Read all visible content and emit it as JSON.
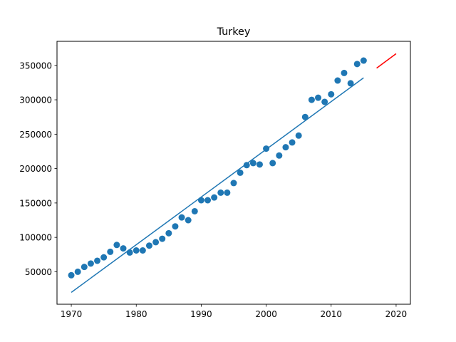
{
  "chart_data": {
    "type": "scatter",
    "title": "Turkey",
    "xlabel": "",
    "ylabel": "",
    "xlim": [
      1967.8,
      2022.2
    ],
    "ylim": [
      2800,
      385000
    ],
    "xticks": [
      1970,
      1980,
      1990,
      2000,
      2010,
      2020
    ],
    "yticks": [
      50000,
      100000,
      150000,
      200000,
      250000,
      300000,
      350000
    ],
    "grid": false,
    "colors": {
      "points": "#1f77b4",
      "fit": "#1f77b4",
      "forecast": "#ff0000",
      "axes": "#000000"
    },
    "series": [
      {
        "kind": "points",
        "x": [
          1970,
          1971,
          1972,
          1973,
          1974,
          1975,
          1976,
          1977,
          1978,
          1979,
          1980,
          1981,
          1982,
          1983,
          1984,
          1985,
          1986,
          1987,
          1988,
          1989,
          1990,
          1991,
          1992,
          1993,
          1994,
          1995,
          1996,
          1997,
          1998,
          1999,
          2000,
          2001,
          2002,
          2003,
          2004,
          2005,
          2006,
          2007,
          2008,
          2009,
          2010,
          2011,
          2012,
          2013,
          2014,
          2015
        ],
        "y": [
          45000,
          50000,
          57000,
          62000,
          66000,
          71000,
          79000,
          89000,
          84000,
          78000,
          81000,
          81000,
          88000,
          93000,
          98000,
          106000,
          116000,
          129000,
          125000,
          138000,
          154000,
          154000,
          158000,
          165000,
          165000,
          179000,
          194000,
          205000,
          208000,
          206000,
          229000,
          208000,
          219000,
          231000,
          238000,
          248000,
          275000,
          300000,
          303000,
          297000,
          308000,
          328000,
          339000,
          324000,
          352000,
          357000
        ]
      },
      {
        "kind": "trend",
        "x": [
          1970,
          2015
        ],
        "y": [
          20000,
          332000
        ]
      },
      {
        "kind": "forecast",
        "x": [
          2017,
          2020
        ],
        "y": [
          346000,
          367000
        ]
      }
    ]
  }
}
